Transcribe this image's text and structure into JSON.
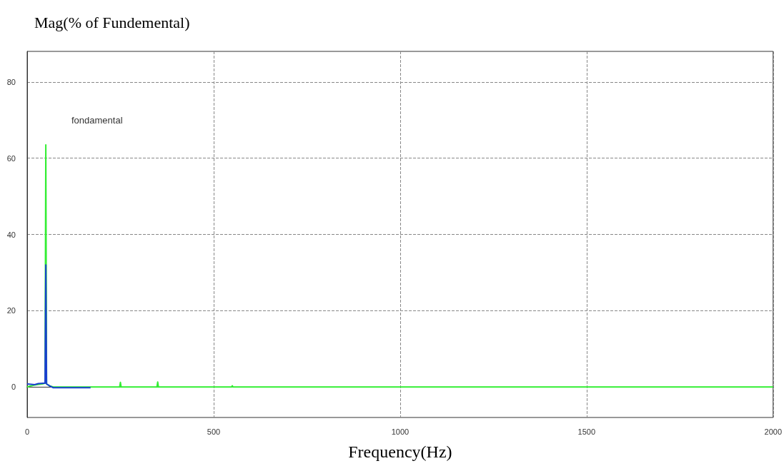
{
  "chart_data": {
    "type": "line",
    "ylabel": "Mag(% of Fundemental)",
    "xlabel": "Frequency(Hz)",
    "annotations": [
      "fondamental"
    ],
    "xlim": [
      0,
      2000
    ],
    "xticks": [
      0,
      500,
      1000,
      1500,
      2000
    ],
    "ylim": [
      -8,
      88
    ],
    "yticks": [
      0,
      20,
      40,
      60,
      80
    ],
    "grid": true,
    "marker": "none",
    "line_style": "solid",
    "series": [
      {
        "color": "#33ee33",
        "x": [
          0,
          10,
          20,
          40,
          48,
          50,
          52,
          60,
          70,
          248,
          250,
          252,
          348,
          350,
          352,
          548,
          550,
          552,
          2000
        ],
        "values": [
          0,
          0.3,
          0.5,
          0.8,
          1,
          63.5,
          0.8,
          0.3,
          0,
          0,
          1.2,
          0,
          0,
          1.3,
          0,
          0,
          0.3,
          0,
          0
        ]
      },
      {
        "color": "#1a3fd0",
        "x": [
          0,
          20,
          30,
          45,
          48,
          50,
          52,
          60,
          70,
          170
        ],
        "values": [
          0.8,
          0.6,
          0.9,
          1,
          1,
          32,
          0.8,
          0.3,
          -0.2,
          -0.2
        ]
      }
    ]
  }
}
